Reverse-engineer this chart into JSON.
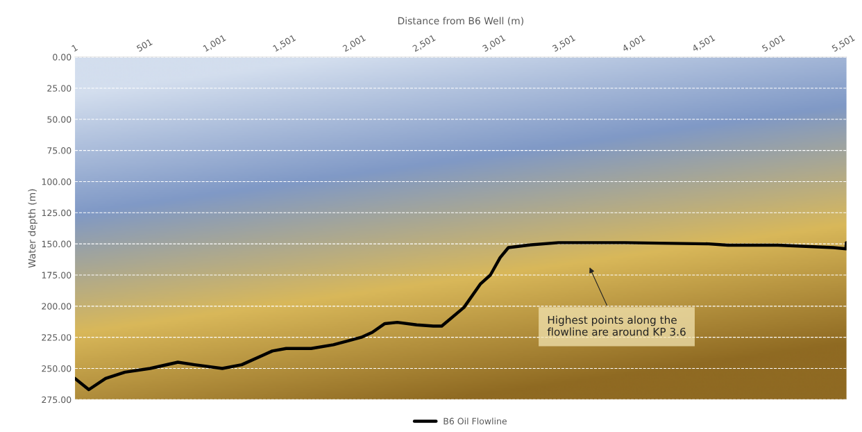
{
  "chart_data": {
    "type": "line",
    "xlabel": "Distance from B6 Well (m)",
    "ylabel": "Water depth (m)",
    "xlim": [
      1,
      5521
    ],
    "xticks": [
      {
        "value": 1,
        "label": "1"
      },
      {
        "value": 501,
        "label": "501"
      },
      {
        "value": 1001,
        "label": "1,001"
      },
      {
        "value": 1501,
        "label": "1,501"
      },
      {
        "value": 2001,
        "label": "2,001"
      },
      {
        "value": 2501,
        "label": "2,501"
      },
      {
        "value": 3001,
        "label": "3,001"
      },
      {
        "value": 3501,
        "label": "3,501"
      },
      {
        "value": 4001,
        "label": "4,001"
      },
      {
        "value": 4501,
        "label": "4,501"
      },
      {
        "value": 5001,
        "label": "5,001"
      },
      {
        "value": 5501,
        "label": "5,501"
      }
    ],
    "ylim": [
      275,
      0
    ],
    "yticks": [
      {
        "value": 0,
        "label": "0.00"
      },
      {
        "value": 25,
        "label": "25.00"
      },
      {
        "value": 50,
        "label": "50.00"
      },
      {
        "value": 75,
        "label": "75.00"
      },
      {
        "value": 100,
        "label": "100.00"
      },
      {
        "value": 125,
        "label": "125.00"
      },
      {
        "value": 150,
        "label": "150.00"
      },
      {
        "value": 175,
        "label": "175.00"
      },
      {
        "value": 200,
        "label": "200.00"
      },
      {
        "value": 225,
        "label": "225.00"
      },
      {
        "value": 250,
        "label": "250.00"
      },
      {
        "value": 275,
        "label": "275.00"
      }
    ],
    "grid": "y",
    "legend": "bottom",
    "line_style": "solid",
    "marker": "none",
    "series": [
      {
        "name": "B6 Oil Flowline",
        "color": "#000000",
        "x": [
          1,
          100,
          220,
          358,
          538,
          737,
          856,
          1055,
          1194,
          1413,
          1512,
          1691,
          1850,
          2049,
          2128,
          2218,
          2307,
          2446,
          2565,
          2625,
          2784,
          2903,
          2973,
          3043,
          3102,
          3242,
          3460,
          3937,
          4534,
          4673,
          5031,
          5429,
          5517,
          5520
        ],
        "values": [
          258,
          267,
          258,
          253,
          250,
          245,
          247,
          250,
          247,
          236,
          234,
          234,
          231,
          225,
          221,
          214,
          213,
          215,
          216,
          216,
          201,
          182,
          175,
          161,
          153,
          151,
          149,
          149,
          150,
          151,
          151,
          153,
          154,
          149
        ]
      }
    ],
    "annotations": [
      "Highest points along the\nflowline are around KP 3.6"
    ]
  }
}
